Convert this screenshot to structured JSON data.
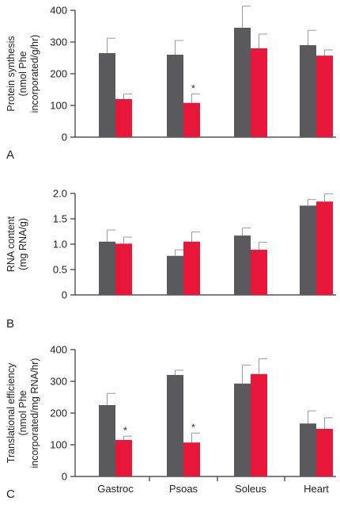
{
  "colors": {
    "series_a": "#5a5a5e",
    "series_b": "#e8173a",
    "axis": "#333333",
    "error": "#9a9a9a"
  },
  "chart_data": [
    {
      "type": "bar",
      "panel_label": "A",
      "ylabel": [
        "Protein synthesis",
        "(nmol Phe",
        "incorporated/g/hr)"
      ],
      "categories": [
        "Gastroc",
        "Psoas",
        "Soleus",
        "Heart"
      ],
      "ylim": [
        0,
        400
      ],
      "yticks": [
        "0",
        "100",
        "200",
        "300",
        "400"
      ],
      "series": [
        {
          "values": [
            265,
            260,
            345,
            290
          ],
          "errors": [
            47,
            45,
            68,
            47
          ]
        },
        {
          "values": [
            120,
            108,
            280,
            257
          ],
          "errors": [
            16,
            28,
            45,
            18
          ]
        }
      ],
      "annotations": [
        {
          "category": "Psoas",
          "series": 1,
          "text": "*"
        }
      ]
    },
    {
      "type": "bar",
      "panel_label": "B",
      "ylabel": [
        "RNA content",
        "(mg RNA/g)"
      ],
      "categories": [
        "Gastroc",
        "Psoas",
        "Soleus",
        "Heart"
      ],
      "ylim": [
        0,
        2.0
      ],
      "yticks": [
        "0",
        "0.5",
        "1.0",
        "1.5",
        "2.0"
      ],
      "series": [
        {
          "values": [
            1.05,
            0.77,
            1.17,
            1.76
          ],
          "errors": [
            0.23,
            0.12,
            0.15,
            0.12
          ]
        },
        {
          "values": [
            1.01,
            1.05,
            0.89,
            1.84
          ],
          "errors": [
            0.13,
            0.19,
            0.15,
            0.15
          ]
        }
      ],
      "annotations": []
    },
    {
      "type": "bar",
      "panel_label": "C",
      "ylabel": [
        "Translational efficiency",
        "(nmol Phe",
        "incorporated/mg RNA/hr)"
      ],
      "categories": [
        "Gastroc",
        "Psoas",
        "Soleus",
        "Heart"
      ],
      "ylim": [
        0,
        400
      ],
      "yticks": [
        "0",
        "100",
        "200",
        "300",
        "400"
      ],
      "series": [
        {
          "values": [
            225,
            320,
            293,
            167
          ],
          "errors": [
            37,
            15,
            58,
            40
          ]
        },
        {
          "values": [
            115,
            107,
            323,
            150
          ],
          "errors": [
            12,
            30,
            48,
            35
          ]
        }
      ],
      "annotations": [
        {
          "category": "Gastroc",
          "series": 1,
          "text": "*"
        },
        {
          "category": "Psoas",
          "series": 1,
          "text": "*"
        }
      ]
    }
  ]
}
